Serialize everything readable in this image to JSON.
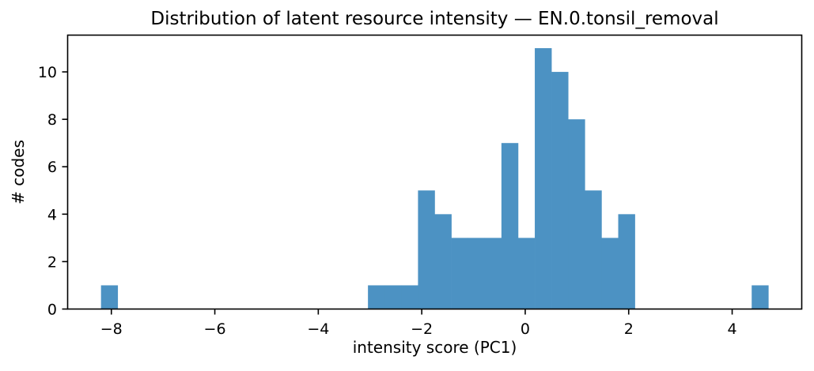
{
  "figure": {
    "background": "#ffffff"
  },
  "chart_data": {
    "type": "bar",
    "subtype": "histogram",
    "title": "Distribution of latent resource intensity — EN.0.tonsil_removal",
    "xlabel": "intensity score (PC1)",
    "ylabel": "# codes",
    "grid": false,
    "legend": "none",
    "bar_color": "#4c92c3",
    "axis_color": "#000000",
    "text_color": "#000000",
    "xlim": [
      -8.845,
      5.345
    ],
    "ylim": [
      0,
      11.55
    ],
    "x_ticks": [
      -8,
      -6,
      -4,
      -2,
      0,
      2,
      4
    ],
    "y_ticks": [
      0,
      2,
      4,
      6,
      8,
      10
    ],
    "bins": {
      "start": -8.2,
      "width": 0.3225,
      "count": 40
    },
    "counts": [
      1,
      0,
      0,
      0,
      0,
      0,
      0,
      0,
      0,
      0,
      0,
      0,
      0,
      0,
      0,
      0,
      1,
      1,
      1,
      5,
      4,
      3,
      3,
      3,
      7,
      3,
      11,
      10,
      8,
      5,
      3,
      4,
      0,
      0,
      0,
      0,
      0,
      0,
      0,
      1
    ]
  }
}
